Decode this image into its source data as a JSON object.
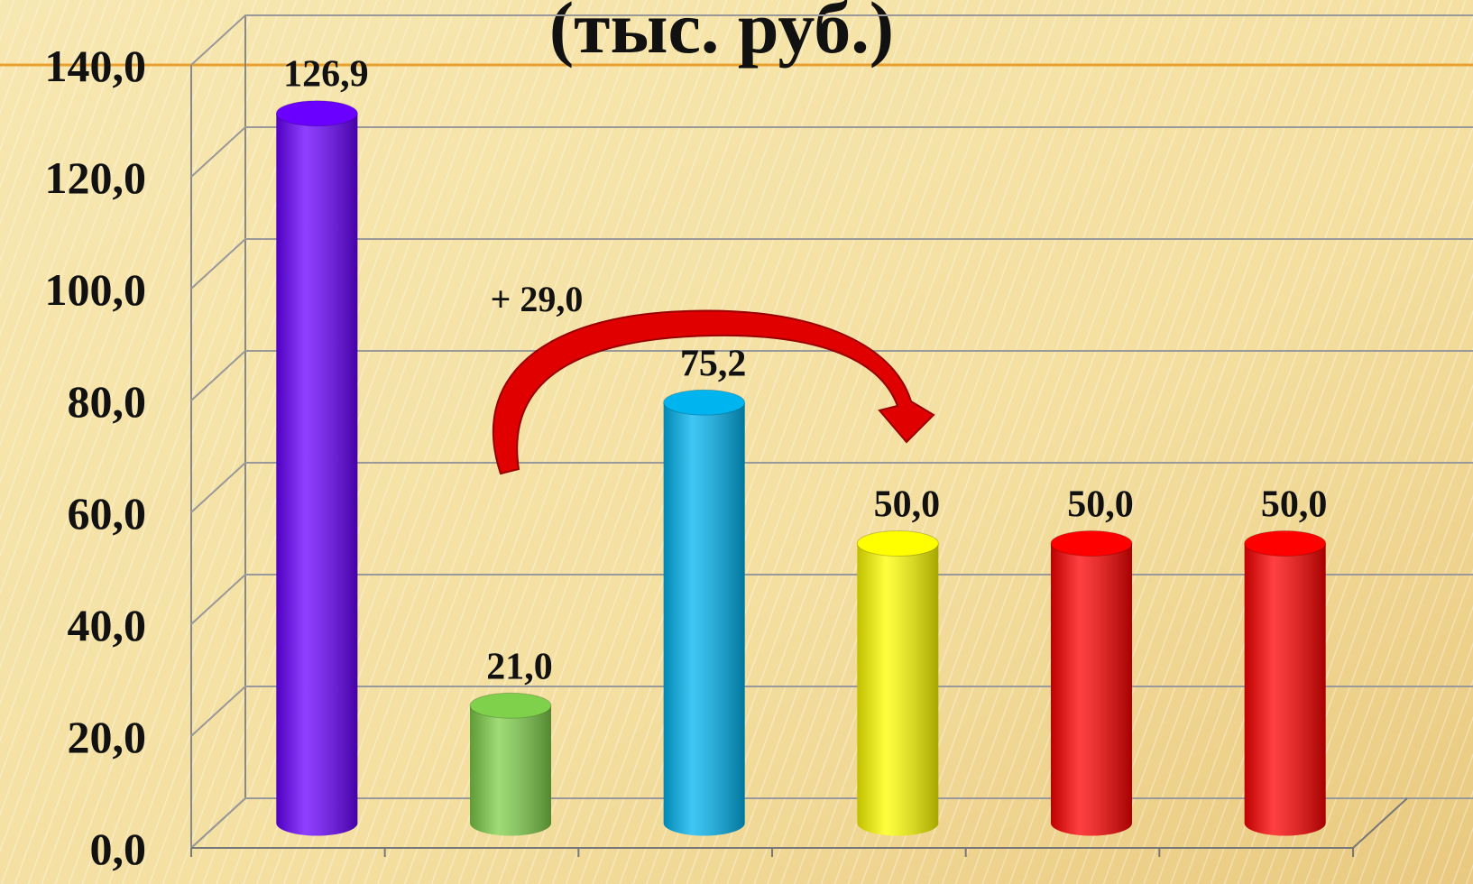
{
  "chart_data": {
    "type": "bar3d",
    "title": "(тыс. руб.)",
    "categories": [
      null,
      null,
      null,
      null,
      null,
      null
    ],
    "values": [
      126.9,
      21.0,
      75.2,
      50.0,
      50.0,
      50.0
    ],
    "value_labels": [
      "126,9",
      "21,0",
      "75,2",
      "50,0",
      "50,0",
      "50,0"
    ],
    "colors": [
      "#6a00ff",
      "#7fd04a",
      "#00b4f0",
      "#ffff00",
      "#ff0000",
      "#ff0000"
    ],
    "ylim": [
      0,
      140
    ],
    "yticks": [
      {
        "value": 0,
        "label": "0,0"
      },
      {
        "value": 20,
        "label": "20,0"
      },
      {
        "value": 40,
        "label": "40,0"
      },
      {
        "value": 60,
        "label": "60,0"
      },
      {
        "value": 80,
        "label": "80,0"
      },
      {
        "value": 100,
        "label": "100,0"
      },
      {
        "value": 120,
        "label": "120,0"
      },
      {
        "value": 140,
        "label": "140,0"
      }
    ],
    "grid": true,
    "annotations": [
      "+ 29,0"
    ]
  }
}
